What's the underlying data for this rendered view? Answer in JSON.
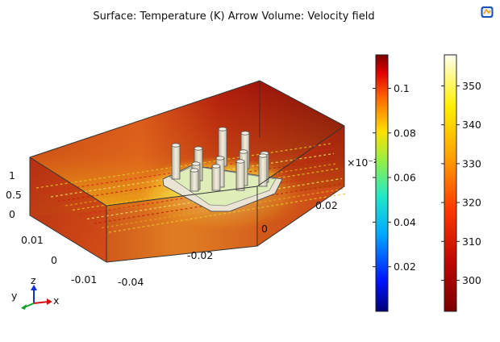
{
  "chart_data": {
    "type": "3d-surface",
    "title": "Surface: Temperature (K)  Arrow Volume: Velocity field",
    "axes": {
      "x_ticks": [
        "-0.04",
        "-0.02",
        "0",
        "0.02"
      ],
      "y_ticks": [
        "-0.01",
        "0",
        "0.01"
      ],
      "z_ticks": [
        "0",
        "0.5",
        "1"
      ],
      "z_multiplier": "×10⁻²",
      "triad": {
        "x": "x",
        "y": "y",
        "z": "z"
      }
    },
    "colorbars": [
      {
        "name": "Velocity field",
        "colormap": "rainbow",
        "range": [
          0.0,
          0.115
        ],
        "ticks": [
          "0.1",
          "0.08",
          "0.06",
          "0.04",
          "0.02"
        ],
        "tick_values": [
          0.1,
          0.08,
          0.06,
          0.04,
          0.02
        ]
      },
      {
        "name": "Temperature (K)",
        "colormap": "thermal",
        "range": [
          292,
          358
        ],
        "ticks": [
          "350",
          "340",
          "330",
          "320",
          "310",
          "300"
        ],
        "tick_values": [
          350,
          340,
          330,
          320,
          310,
          300
        ]
      }
    ],
    "heat_sink_pins": 12
  }
}
